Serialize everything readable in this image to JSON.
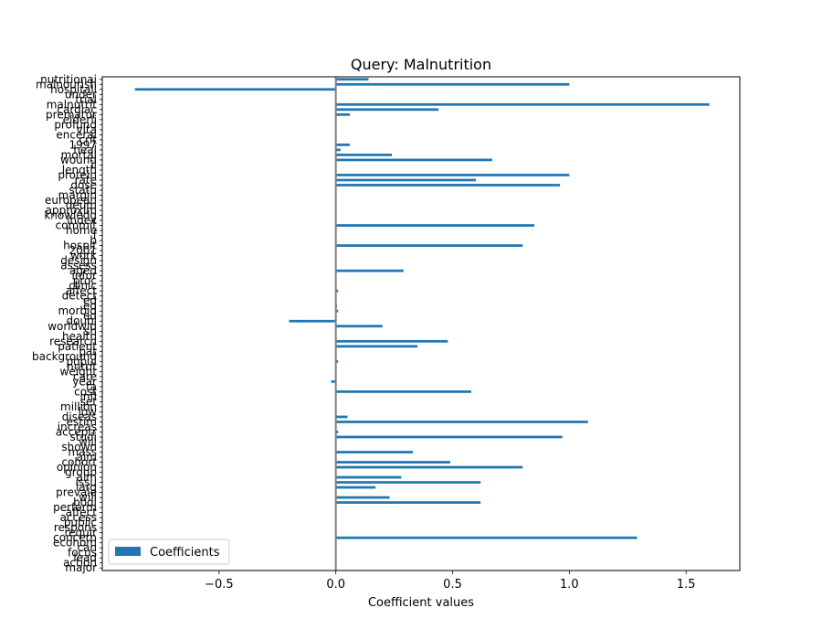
{
  "chart_data": {
    "type": "bar",
    "orientation": "horizontal",
    "title": "Query: Malnutrition",
    "xlabel": "Coefficient values",
    "ylabel": "",
    "xlim": [
      -1.0,
      1.73
    ],
    "xticks": [
      "−0.5",
      "0.0",
      "0.5",
      "1.0",
      "1.5"
    ],
    "xtick_values": [
      -0.5,
      0.0,
      0.5,
      1.0,
      1.5
    ],
    "grid": false,
    "legend": {
      "placement": "lower-left",
      "entries": [
        "Coefficients"
      ]
    },
    "series": [
      {
        "name": "Coefficients",
        "color": "#1f77b4",
        "categories": [
          "major",
          "action",
          "lead",
          "focus",
          "can",
          "econom",
          "concern",
          "requir",
          "respons",
          "public",
          "access",
          "affect",
          "perform",
          "bodi",
          "will",
          "prevale",
          "larg",
          "issu",
          "aim",
          "group",
          "opinion",
          "cohort",
          "aim",
          "mass",
          "shown",
          "will",
          "studi",
          "acceptr",
          "increas",
          "estim",
          "diseas",
          "low",
          "million",
          "set",
          "infl",
          "cost",
          "ta",
          "year",
          "care",
          "weight",
          "nutrit",
          "popul",
          "background",
          "pat",
          "patient",
          "research",
          "health",
          "sh",
          "worldwid",
          "doubl",
          "ed",
          "morbid",
          "ed",
          "ed",
          "detect",
          "affect",
          "clinic",
          "proc",
          "infor",
          "aged",
          "assess",
          "design",
          "work",
          "2001",
          "hospit",
          "b",
          "f",
          "home",
          "commit",
          "index",
          "knowledg",
          "approxim",
          "deum",
          "european",
          "margin",
          "statu",
          "dose",
          "rate",
          "protein",
          "length",
          "il",
          "wound",
          "mortal",
          "heal",
          "1997",
          "crit",
          "enceral",
          "vita",
          "profund",
          "elderli",
          "prematur",
          "cardiac",
          "malnutrit",
          "trial",
          "under",
          "hospitali",
          "malnourish",
          "nutritionai"
        ],
        "values": [
          0,
          0,
          0,
          0,
          0,
          0,
          1.29,
          0,
          0,
          0,
          0,
          0,
          0,
          0.62,
          0.23,
          0,
          0.17,
          0.62,
          0.28,
          0,
          0.8,
          0.49,
          0,
          0.33,
          0,
          0,
          0.97,
          0.01,
          0,
          1.08,
          0.05,
          0,
          0,
          0,
          0,
          0.58,
          0,
          -0.02,
          0,
          0,
          0,
          0.01,
          0,
          0,
          0.35,
          0.48,
          0,
          0,
          0.2,
          -0.2,
          0,
          0.01,
          0.005,
          0,
          0,
          0.01,
          0,
          0,
          0,
          0.29,
          0,
          0,
          0,
          0,
          0.8,
          0,
          0,
          0,
          0.85,
          0,
          0,
          0,
          0,
          0,
          0,
          0,
          0.96,
          0.6,
          1.0,
          0,
          0,
          0.67,
          0.24,
          0.02,
          0.06,
          0,
          0,
          0,
          0,
          0,
          0.06,
          0.44,
          1.6,
          0,
          0,
          -0.86,
          1.0,
          0.14
        ]
      }
    ]
  }
}
